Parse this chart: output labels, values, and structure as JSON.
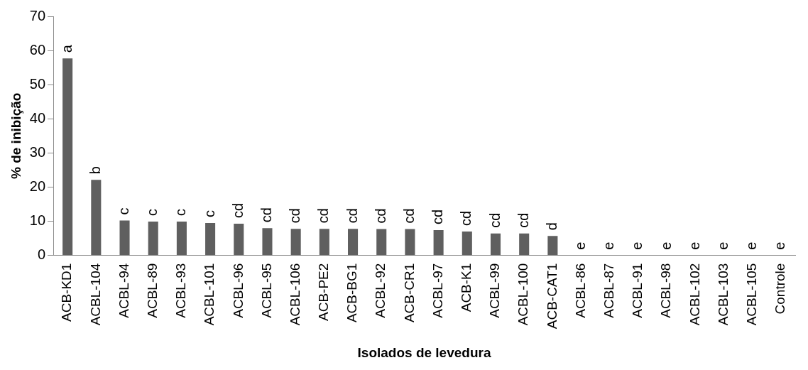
{
  "chart_data": {
    "type": "bar",
    "xlabel": "Isolados de levedura",
    "ylabel": "% de inibição",
    "categories": [
      "ACB-KD1",
      "ACBL-104",
      "ACBL-94",
      "ACBL-89",
      "ACBL-93",
      "ACBL-101",
      "ACBL-96",
      "ACBL-95",
      "ACBL-106",
      "ACB-PE2",
      "ACB-BG1",
      "ACBL-92",
      "ACB-CR1",
      "ACBL-97",
      "ACB-K1",
      "ACBL-99",
      "ACBL-100",
      "ACB-CAT1",
      "ACBL-86",
      "ACBL-87",
      "ACBL-91",
      "ACBL-98",
      "ACBL-102",
      "ACBL-103",
      "ACBL-105",
      "Controle"
    ],
    "values": [
      57.7,
      22.1,
      10.2,
      9.9,
      9.9,
      9.5,
      9.3,
      8.0,
      7.8,
      7.8,
      7.8,
      7.7,
      7.7,
      7.4,
      7.0,
      6.4,
      6.4,
      5.7,
      0,
      0,
      0,
      0,
      0,
      0,
      0,
      0
    ],
    "value_labels": [
      "a",
      "b",
      "c",
      "c",
      "c",
      "c",
      "cd",
      "cd",
      "cd",
      "cd",
      "cd",
      "cd",
      "cd",
      "cd",
      "cd",
      "cd",
      "cd",
      "d",
      "e",
      "e",
      "e",
      "e",
      "e",
      "e",
      "e",
      "e"
    ],
    "color": "#5f5f5f",
    "ylim": [
      0,
      70
    ],
    "yticks": [
      0,
      10,
      20,
      30,
      40,
      50,
      60,
      70
    ],
    "grid": false,
    "legend": false
  }
}
